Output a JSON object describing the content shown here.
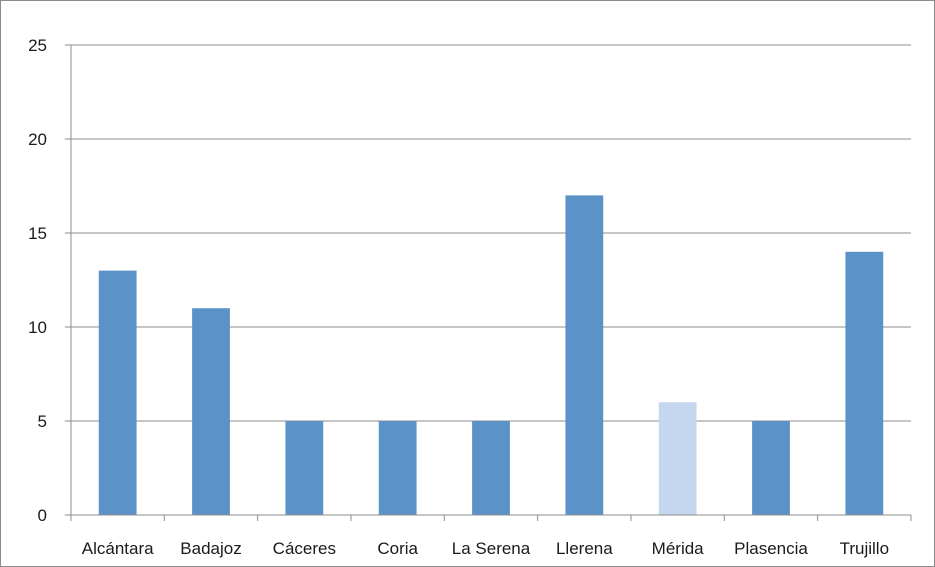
{
  "chart_data": {
    "type": "bar",
    "title": "",
    "xlabel": "",
    "ylabel": "",
    "categories": [
      "Alcántara",
      "Badajoz",
      "Cáceres",
      "Coria",
      "La Serena",
      "Llerena",
      "Mérida",
      "Plasencia",
      "Trujillo"
    ],
    "values": [
      13,
      11,
      5,
      5,
      5,
      17,
      6,
      5,
      14
    ],
    "ylim": [
      0,
      25
    ],
    "yticks": [
      0,
      5,
      10,
      15,
      20,
      25
    ],
    "grid": true,
    "legend": "none",
    "colors": {
      "bar": "#5b93c9",
      "bar_highlight": "#c5d7ee",
      "grid": "#8c8c8c",
      "axis": "#8c8c8c"
    },
    "highlight_index": 6
  }
}
